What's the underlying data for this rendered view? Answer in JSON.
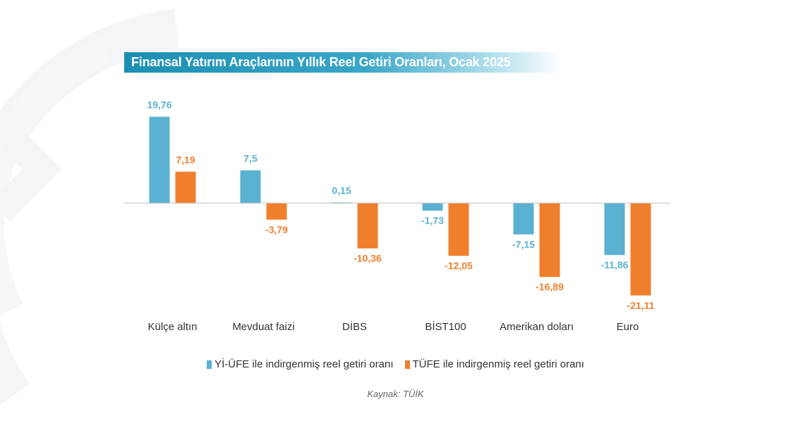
{
  "title": "Finansal Yatırım Araçlarının Yıllık Reel Getiri Oranları, Ocak 2025",
  "source": "Kaynak: TÜİK",
  "colors": {
    "series1": "#5ab1d2",
    "series2": "#f07f2d",
    "title_bg": "#1f92b6",
    "axis": "#bfbfbf"
  },
  "chart_data": {
    "type": "bar",
    "title": "Finansal Yatırım Araçlarının Yıllık Reel Getiri Oranları, Ocak 2025",
    "categories": [
      "Külçe altın",
      "Mevduat faizi",
      "DİBS",
      "BİST100",
      "Amerikan doları",
      "Euro"
    ],
    "series": [
      {
        "name": "Yİ-ÜFE ile indirgenmiş reel getiri oranı",
        "values": [
          19.76,
          7.5,
          0.15,
          -1.73,
          -7.15,
          -11.86
        ],
        "labels": [
          "19,76",
          "7,5",
          "0,15",
          "-1,73",
          "-7,15",
          "-11,86"
        ]
      },
      {
        "name": "TÜFE ile indirgenmiş reel getiri oranı",
        "values": [
          7.19,
          -3.79,
          -10.36,
          -12.05,
          -16.89,
          -21.11
        ],
        "labels": [
          "7,19",
          "-3,79",
          "-10,36",
          "-12,05",
          "-16,89",
          "-21,11"
        ]
      }
    ],
    "legend_position": "bottom",
    "grid": false,
    "ylim": [
      -22,
      21
    ]
  }
}
